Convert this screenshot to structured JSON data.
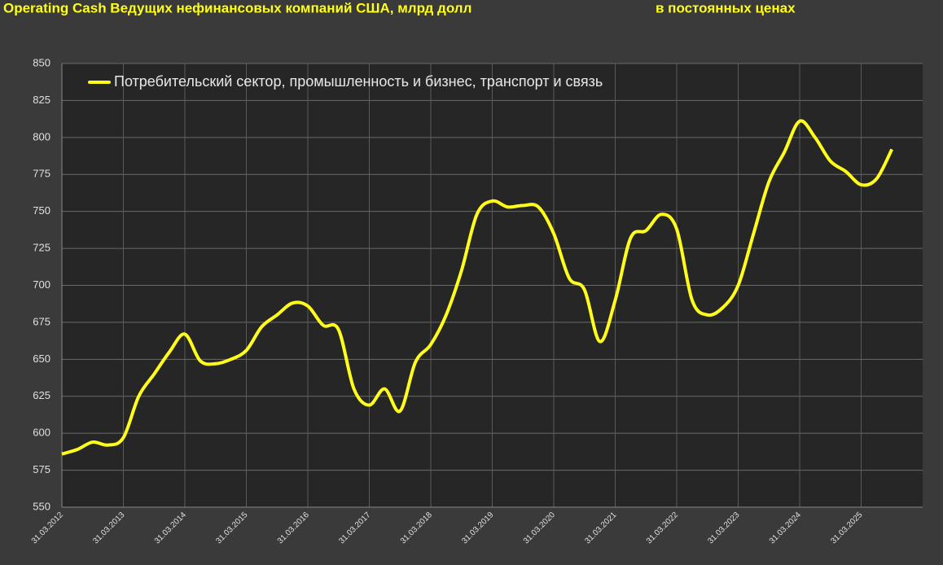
{
  "chart_data": {
    "type": "line",
    "title": "Operating Cash Ведущих нефинансовых компаний США, млрд долл",
    "subtitle": "в постоянных ценах",
    "categories": [
      "31.03.2012",
      null,
      null,
      null,
      "31.03.2013",
      null,
      null,
      null,
      "31.03.2014",
      null,
      null,
      null,
      "31.03.2015",
      null,
      null,
      null,
      "31.03.2016",
      null,
      null,
      null,
      "31.03.2017",
      null,
      null,
      null,
      "31.03.2018",
      null,
      null,
      null,
      "31.03.2019",
      null,
      null,
      null,
      "31.03.2020",
      null,
      null,
      null,
      "31.03.2021",
      null,
      null,
      null,
      "31.03.2022",
      null,
      null,
      null,
      "31.03.2023",
      null,
      null,
      null,
      "31.03.2024",
      null,
      null,
      null,
      "31.03.2025",
      null,
      null
    ],
    "series": [
      {
        "name": "Потребительский сектор, промышленность и бизнес, транспорт и связь",
        "color": "#ffff1a",
        "values": [
          586,
          589,
          594,
          592,
          597,
          625,
          640,
          655,
          667,
          649,
          647,
          650,
          656,
          672,
          680,
          688,
          686,
          673,
          670,
          630,
          619,
          630,
          615,
          648,
          660,
          680,
          710,
          748,
          757,
          753,
          754,
          753,
          735,
          705,
          697,
          662,
          690,
          732,
          737,
          748,
          738,
          690,
          680,
          685,
          700,
          735,
          770,
          790,
          811,
          800,
          784,
          777,
          768,
          772,
          792
        ]
      }
    ],
    "ylim": [
      550,
      850
    ],
    "yticks": [
      550,
      575,
      600,
      625,
      650,
      675,
      700,
      725,
      750,
      775,
      800,
      825,
      850
    ],
    "grid": true,
    "legend": "top-left"
  }
}
